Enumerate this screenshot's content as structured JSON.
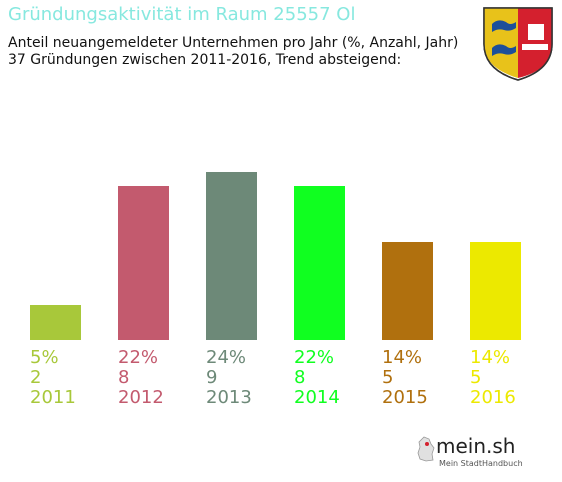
{
  "title": "Gründungsaktivität im Raum 25557 Ol",
  "subtitle_line1": "Anteil neuangemeldeter Unternehmen pro Jahr (%, Anzahl, Jahr)",
  "subtitle_line2": "37 Gründungen zwischen 2011-2016, Trend absteigend:",
  "logo": {
    "name": "mein.sh",
    "tagline": "Mein StadtHandbuch"
  },
  "coat_of_arms": {
    "icon": "schleswig-holstein-coat-of-arms-icon"
  },
  "chart_data": {
    "type": "bar",
    "title": "Gründungsaktivität im Raum 25557 Ol",
    "categories": [
      "2011",
      "2012",
      "2013",
      "2014",
      "2015",
      "2016"
    ],
    "series": [
      {
        "values": [
          5,
          22,
          24,
          22,
          14,
          14
        ]
      }
    ],
    "percent_labels": [
      "5%",
      "22%",
      "24%",
      "22%",
      "14%",
      "14%"
    ],
    "counts": [
      2,
      8,
      9,
      8,
      5,
      5
    ],
    "colors": [
      "#a8c83a",
      "#c35a6e",
      "#6d8978",
      "#10ff20",
      "#b0700e",
      "#ece900"
    ],
    "ylim": [
      0,
      24
    ],
    "grid": false,
    "legend": "none"
  }
}
